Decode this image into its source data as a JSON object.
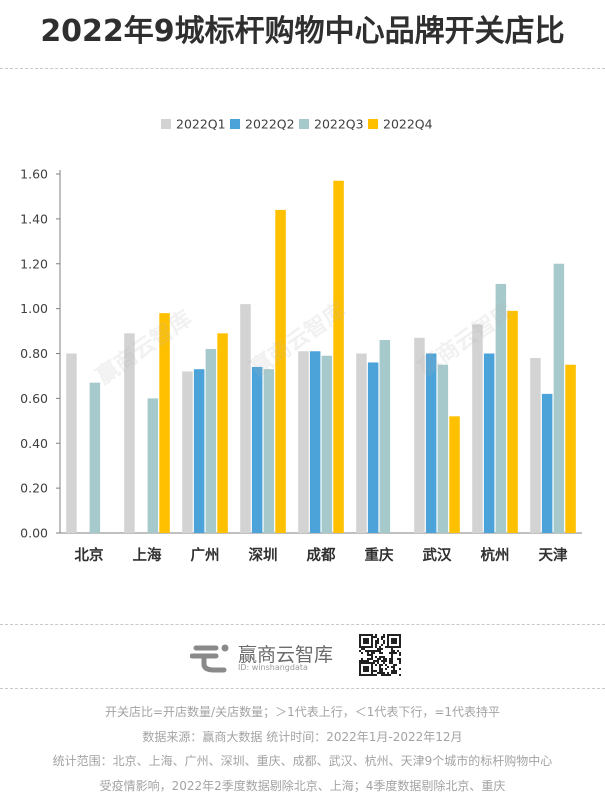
{
  "title": "2022年9城标杆购物中心品牌开关店比",
  "watermark_text": "赢商云智库",
  "brand": {
    "name": "赢商云智库",
    "id_text": "ID: winshangdata"
  },
  "notes": [
    "开关店比=开店数量/关店数量；＞1代表上行，＜1代表下行，=1代表持平",
    "数据来源：赢商大数据  统计时间：2022年1月-2022年12月",
    "统计范围：北京、上海、广州、深圳、重庆、成都、武汉、杭州、天津9个城市的标杆购物中心",
    "受疫情影响，2022年2季度数据剔除北京、上海；4季度数据剔除北京、重庆"
  ],
  "chart_data": {
    "type": "bar",
    "categories": [
      "北京",
      "上海",
      "广州",
      "深圳",
      "成都",
      "重庆",
      "武汉",
      "杭州",
      "天津"
    ],
    "series": [
      {
        "name": "2022Q1",
        "color": "#d3d3d3",
        "values": [
          0.8,
          0.89,
          0.72,
          1.02,
          0.81,
          0.8,
          0.87,
          0.93,
          0.78
        ]
      },
      {
        "name": "2022Q2",
        "color": "#4ba3da",
        "values": [
          null,
          null,
          0.73,
          0.74,
          0.81,
          0.76,
          0.8,
          0.8,
          0.62
        ]
      },
      {
        "name": "2022Q3",
        "color": "#a6c9cc",
        "values": [
          0.67,
          0.6,
          0.82,
          0.73,
          0.79,
          0.86,
          0.75,
          1.11,
          1.2
        ]
      },
      {
        "name": "2022Q4",
        "color": "#ffc000",
        "values": [
          null,
          0.98,
          0.89,
          1.44,
          1.57,
          null,
          0.52,
          0.99,
          0.75
        ]
      }
    ],
    "yticks": [
      "0.00",
      "0.20",
      "0.40",
      "0.60",
      "0.80",
      "1.00",
      "1.20",
      "1.40",
      "1.60"
    ],
    "ylim": [
      0,
      1.6
    ],
    "legend_position": "top-center",
    "grid": false
  }
}
